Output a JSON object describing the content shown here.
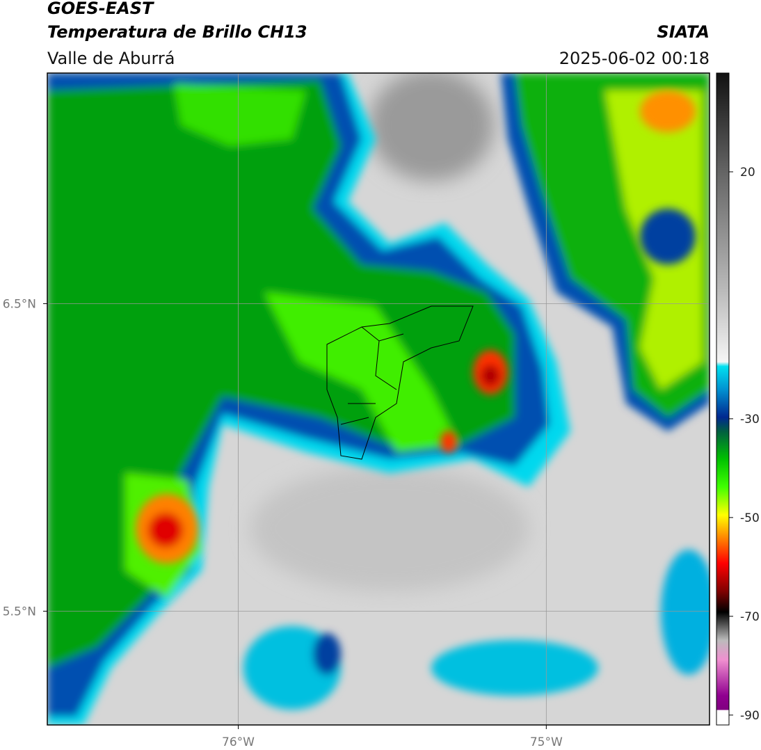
{
  "header": {
    "title": "GOES-EAST",
    "subtitle": "Temperatura de Brillo CH13",
    "region": "Valle de Aburrá",
    "source": "SIATA",
    "datetime": "2025-06-02 00:18"
  },
  "map": {
    "xlim": [
      -76.62,
      -74.47
    ],
    "ylim": [
      5.13,
      7.25
    ],
    "xticks": [
      {
        "value": -76,
        "label": "76°W"
      },
      {
        "value": -75,
        "label": "75°W"
      }
    ],
    "yticks": [
      {
        "value": 5.5,
        "label": "5.5°N"
      },
      {
        "value": 6.5,
        "label": "6.5°N"
      }
    ],
    "grid": true
  },
  "colorbar": {
    "lim": [
      -92,
      40
    ],
    "ticks": [
      -90,
      -70,
      -50,
      -30,
      20
    ]
  }
}
